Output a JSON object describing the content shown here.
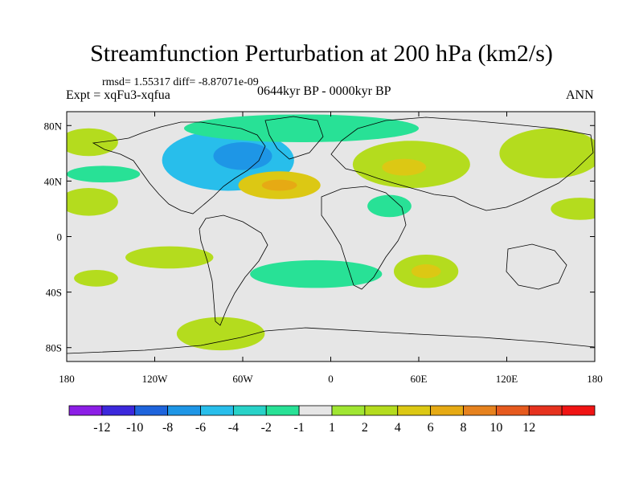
{
  "chart_data": {
    "type": "heatmap",
    "title": "Streamfunction Perturbation at 200 hPa (km2/s)",
    "stats": "rmsd= 1.55317 diff= -8.87071e-09",
    "experiment": "Expt = xqFu3-xqfua",
    "period": "0644kyr BP - 0000kyr BP",
    "season": "ANN",
    "xlim": [
      -180,
      180
    ],
    "ylim": [
      -90,
      90
    ],
    "x_ticks": [
      {
        "value": -180,
        "label": "180"
      },
      {
        "value": -120,
        "label": "120W"
      },
      {
        "value": -60,
        "label": "60W"
      },
      {
        "value": 0,
        "label": "0"
      },
      {
        "value": 60,
        "label": "60E"
      },
      {
        "value": 120,
        "label": "120E"
      },
      {
        "value": 180,
        "label": "180"
      }
    ],
    "y_ticks": [
      {
        "value": 80,
        "label": "80N"
      },
      {
        "value": 40,
        "label": "40N"
      },
      {
        "value": 0,
        "label": "0"
      },
      {
        "value": -40,
        "label": "40S"
      },
      {
        "value": -80,
        "label": "80S"
      }
    ],
    "colorbar": {
      "colors": [
        "#8c1ee6",
        "#3c28dc",
        "#1e64dc",
        "#1e96e6",
        "#28beeb",
        "#28d2c8",
        "#28e196",
        "#e6e6e6",
        "#a0e632",
        "#b4dc1e",
        "#dcc814",
        "#e6aa14",
        "#e6821e",
        "#e65a1e",
        "#e6321e",
        "#f01414"
      ],
      "labels": [
        "-12",
        "-10",
        "-8",
        "-6",
        "-4",
        "-2",
        "-1",
        "1",
        "2",
        "4",
        "6",
        "8",
        "10",
        "12"
      ]
    },
    "regions": [
      {
        "name": "north-atlantic-negative",
        "lon": -70,
        "lat": 55,
        "rlon": 45,
        "rlat": 22,
        "level": -4
      },
      {
        "name": "north-america-core",
        "lon": -60,
        "lat": 58,
        "rlon": 20,
        "rlat": 10,
        "level": -6
      },
      {
        "name": "arctic-band",
        "lon": -20,
        "lat": 78,
        "rlon": 80,
        "rlat": 10,
        "level": -1
      },
      {
        "name": "subtropical-atlantic-high",
        "lon": -35,
        "lat": 37,
        "rlon": 28,
        "rlat": 10,
        "level": 4
      },
      {
        "name": "subtropical-atlantic-core",
        "lon": -35,
        "lat": 37,
        "rlon": 12,
        "rlat": 4,
        "level": 6
      },
      {
        "name": "eurasia-high",
        "lon": 55,
        "lat": 52,
        "rlon": 40,
        "rlat": 17,
        "level": 2
      },
      {
        "name": "eurasia-core",
        "lon": 50,
        "lat": 50,
        "rlon": 15,
        "rlat": 6,
        "level": 4
      },
      {
        "name": "east-asia-high",
        "lon": 150,
        "lat": 60,
        "rlon": 35,
        "rlat": 18,
        "level": 2
      },
      {
        "name": "pacific-west-high",
        "lon": -165,
        "lat": 25,
        "rlon": 20,
        "rlat": 10,
        "level": 2
      },
      {
        "name": "pacific-east-high",
        "lon": 170,
        "lat": 20,
        "rlon": 20,
        "rlat": 8,
        "level": 2
      },
      {
        "name": "pacific-north-low",
        "lon": -155,
        "lat": 45,
        "rlon": 25,
        "rlat": 6,
        "level": -1
      },
      {
        "name": "pacific-north-high",
        "lon": -165,
        "lat": 68,
        "rlon": 20,
        "rlat": 10,
        "level": 2
      },
      {
        "name": "africa-low",
        "lon": 40,
        "lat": 22,
        "rlon": 15,
        "rlat": 8,
        "level": -1
      },
      {
        "name": "south-atlantic-low",
        "lon": -10,
        "lat": -27,
        "rlon": 45,
        "rlat": 10,
        "level": -1
      },
      {
        "name": "south-pacific-high",
        "lon": -110,
        "lat": -15,
        "rlon": 30,
        "rlat": 8,
        "level": 2
      },
      {
        "name": "south-pacific-west-high",
        "lon": -160,
        "lat": -30,
        "rlon": 15,
        "rlat": 6,
        "level": 2
      },
      {
        "name": "indian-ocean-high",
        "lon": 65,
        "lat": -25,
        "rlon": 22,
        "rlat": 12,
        "level": 2
      },
      {
        "name": "indian-ocean-core",
        "lon": 65,
        "lat": -25,
        "rlon": 10,
        "rlat": 5,
        "level": 4
      },
      {
        "name": "antarctic-high",
        "lon": -75,
        "lat": -70,
        "rlon": 30,
        "rlat": 12,
        "level": 2
      }
    ]
  }
}
